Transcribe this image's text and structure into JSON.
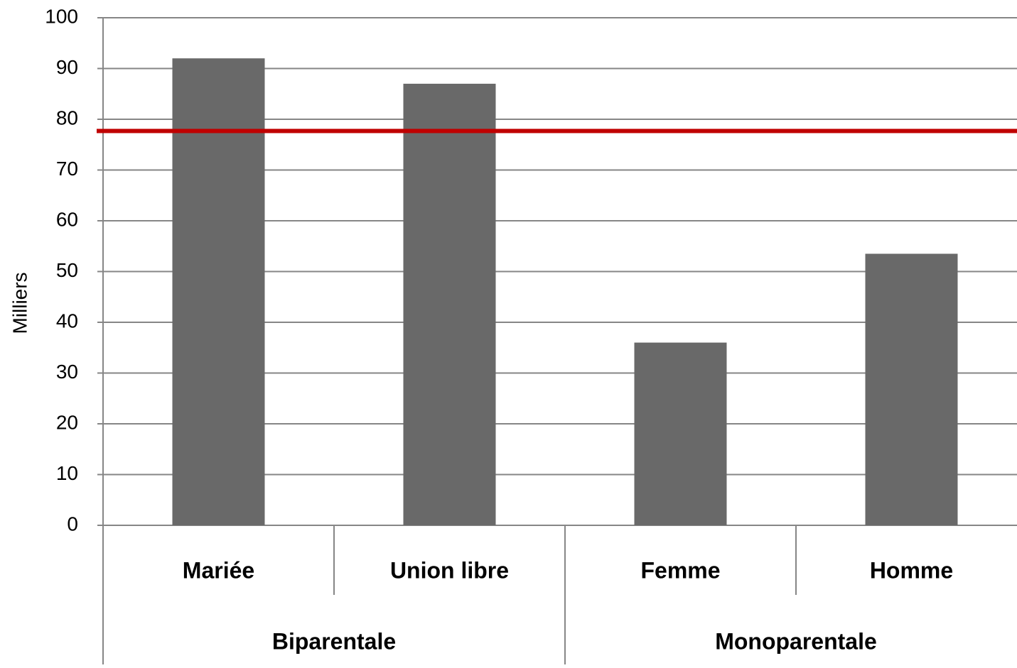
{
  "chart_data": {
    "type": "bar",
    "y_axis_label": "Milliers",
    "groups": [
      {
        "name": "Biparentale",
        "categories": [
          "Mariée",
          "Union libre"
        ],
        "values": [
          92,
          87
        ]
      },
      {
        "name": "Monoparentale",
        "categories": [
          "Femme",
          "Homme"
        ],
        "values": [
          36,
          53.5
        ]
      }
    ],
    "color": "#696969",
    "reference_line": {
      "value": 77.7,
      "color": "#c00000"
    },
    "ylim": [
      0,
      100
    ],
    "yticks": [
      0,
      10,
      20,
      30,
      40,
      50,
      60,
      70,
      80,
      90,
      100
    ],
    "grid": true
  }
}
